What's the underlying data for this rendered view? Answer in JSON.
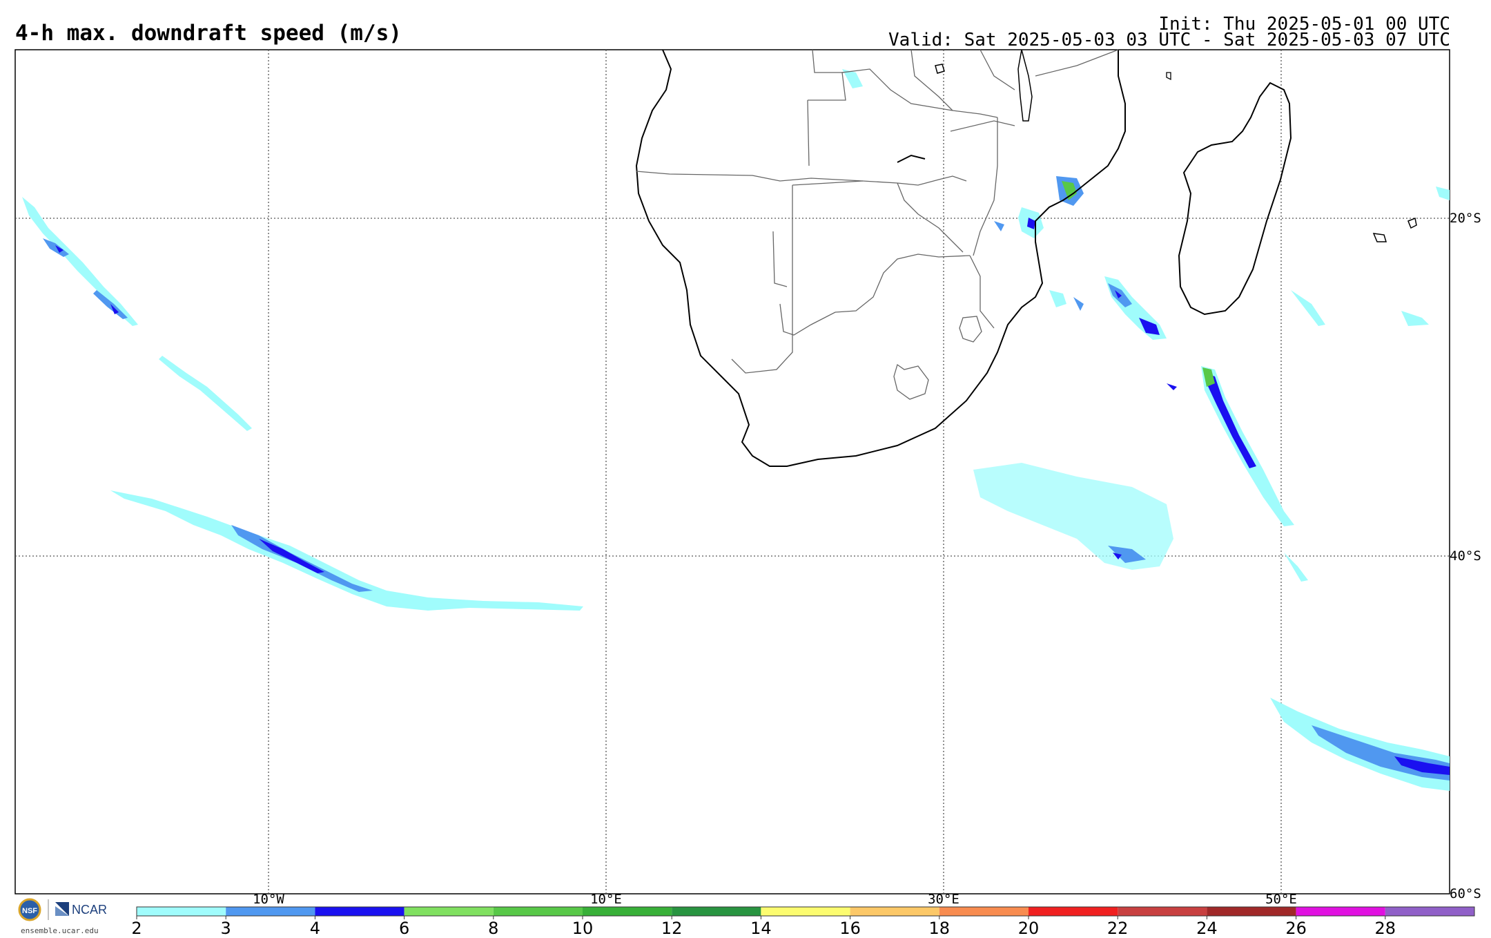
{
  "header": {
    "title": "4-h max. downdraft speed (m/s)",
    "init": "Init: Thu 2025-05-01 00 UTC",
    "valid": "Valid: Sat 2025-05-03 03 UTC - Sat 2025-05-03 07 UTC"
  },
  "map": {
    "longitude_labels": [
      "10°W",
      "10°E",
      "30°E",
      "50°E"
    ],
    "latitude_labels": [
      "20°S",
      "40°S",
      "60°S"
    ]
  },
  "colorbar": {
    "ticks": [
      "2",
      "3",
      "4",
      "6",
      "8",
      "10",
      "12",
      "14",
      "16",
      "18",
      "20",
      "22",
      "24",
      "26",
      "28"
    ],
    "colors": [
      "#a0fcfc",
      "#5098f0",
      "#1a10f0",
      "#80e060",
      "#58c848",
      "#38b038",
      "#289440",
      "#fcfc70",
      "#fcc868",
      "#f88c50",
      "#f02020",
      "#c84040",
      "#a02828",
      "#e010e0",
      "#9060c8"
    ]
  },
  "branding": {
    "nsf": "NSF",
    "ncar": "NCAR",
    "site": "ensemble.ucar.edu"
  },
  "colors": {
    "graticule": "#555555",
    "coast": "#000000",
    "borders": "#666666"
  }
}
